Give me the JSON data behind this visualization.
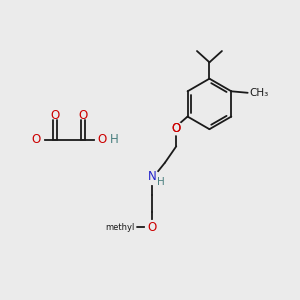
{
  "background_color": "#ebebeb",
  "bond_color": "#1a1a1a",
  "oxygen_color": "#cc0000",
  "nitrogen_color": "#2222cc",
  "carbon_gray": "#4a8080",
  "figsize": [
    3.0,
    3.0
  ],
  "dpi": 100,
  "xlim": [
    0,
    10
  ],
  "ylim": [
    0,
    10
  ]
}
